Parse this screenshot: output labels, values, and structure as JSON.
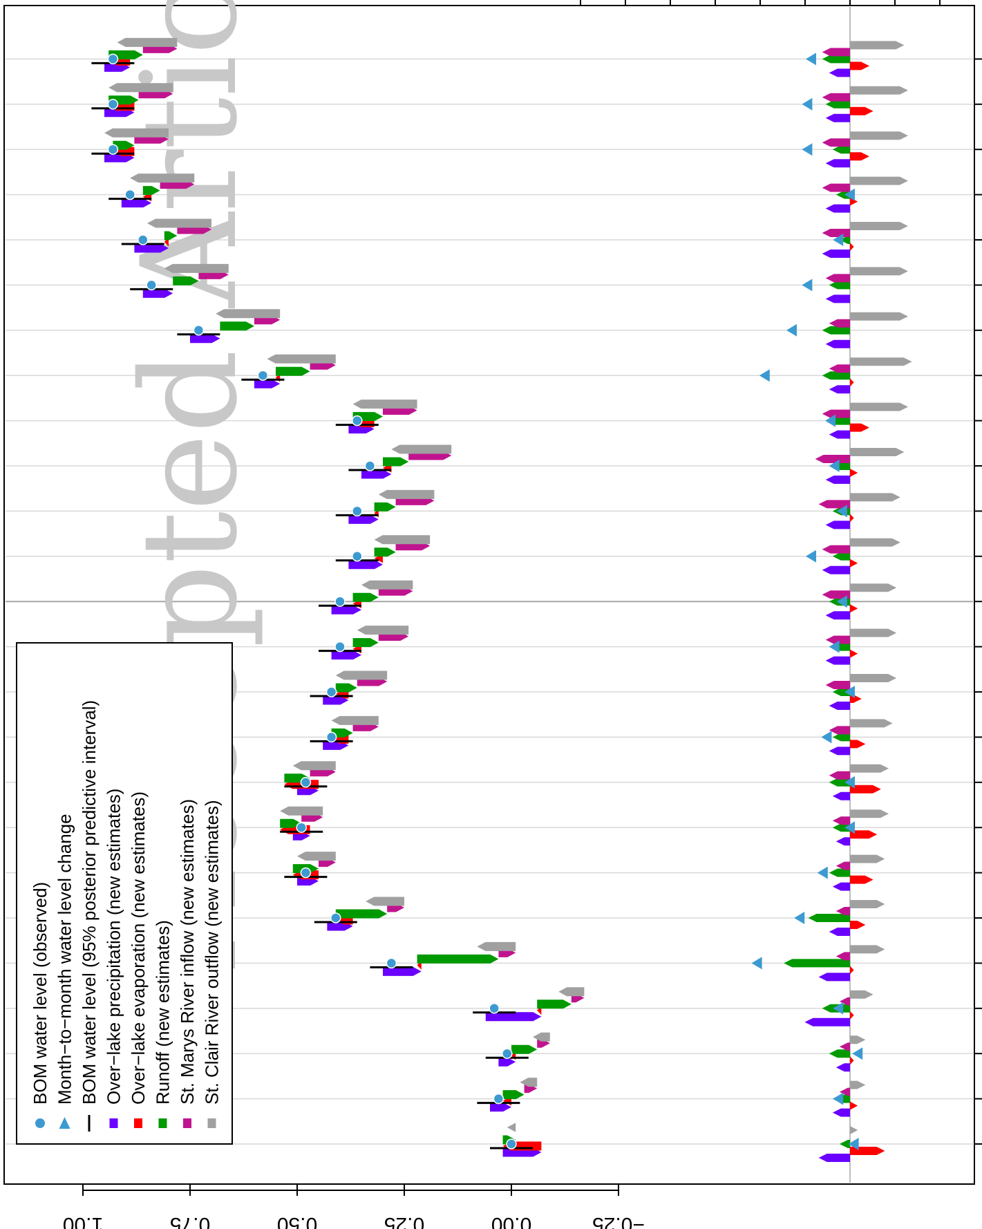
{
  "chart_data": {
    "type": "bar",
    "watermark": "Accepted Article",
    "value_axis": {
      "ticks": [
        -0.25,
        0.0,
        0.25,
        0.5,
        0.75,
        1.0
      ],
      "tick_labels": [
        "−0.25",
        "0.00",
        "0.25",
        "0.50",
        "0.75",
        "1.00"
      ]
    },
    "grid": true,
    "legend": {
      "placement": "bottom-left",
      "entries": [
        {
          "label": "BOM water level (observed)",
          "color": "#3d9ad1",
          "icon": "circle"
        },
        {
          "label": "Month−to−month water level change",
          "color": "#3d9ad1",
          "icon": "triangle"
        },
        {
          "label": "BOM water level (95% posterior predictive interval)",
          "color": "#000000",
          "icon": "line"
        },
        {
          "label": "Over−lake precipitation (new estimates)",
          "color": "#6a00ff",
          "icon": "square"
        },
        {
          "label": "Over−lake evaporation (new estimates)",
          "color": "#ff0000",
          "icon": "square"
        },
        {
          "label": "Runoff (new estimates)",
          "color": "#009900",
          "icon": "square"
        },
        {
          "label": "St. Marys River inflow (new estimates)",
          "color": "#c0148f",
          "icon": "square"
        },
        {
          "label": "St. Clair River outflow (new estimates)",
          "color": "#a0a0a0",
          "icon": "square"
        }
      ]
    },
    "months": 25,
    "series": [
      {
        "name": "BOM water level (observed)",
        "values": [
          0.0,
          0.03,
          0.01,
          0.04,
          0.28,
          0.41,
          0.48,
          0.49,
          0.48,
          0.42,
          0.42,
          0.4,
          0.4,
          0.36,
          0.36,
          0.33,
          0.36,
          0.58,
          0.73,
          0.84,
          0.86,
          0.89,
          0.93,
          0.93,
          0.93
        ]
      },
      {
        "name": "Month−to−month water level change",
        "values": [
          -0.01,
          0.03,
          -0.02,
          0.03,
          0.24,
          0.13,
          0.07,
          0.0,
          0.0,
          0.06,
          0.0,
          0.04,
          0.02,
          0.1,
          0.02,
          0.04,
          0.05,
          0.22,
          0.15,
          0.11,
          0.03,
          0.0,
          0.11,
          0.11,
          0.1
        ]
      },
      {
        "name": "Over−lake precipitation (new estimates)",
        "values": [
          0.09,
          0.05,
          0.04,
          0.13,
          0.09,
          0.06,
          0.05,
          0.04,
          0.05,
          0.06,
          0.06,
          0.07,
          0.07,
          0.08,
          0.07,
          0.07,
          0.06,
          0.06,
          0.07,
          0.07,
          0.08,
          0.07,
          0.07,
          0.07,
          0.06
        ]
      },
      {
        "name": "Over−lake evaporation (new estimates)",
        "values": [
          -0.09,
          -0.02,
          -0.01,
          -0.01,
          -0.01,
          -0.04,
          -0.06,
          -0.07,
          -0.08,
          -0.04,
          -0.03,
          -0.02,
          -0.02,
          -0.02,
          -0.01,
          -0.02,
          -0.05,
          -0.01,
          0.0,
          0.0,
          -0.01,
          -0.02,
          -0.05,
          -0.06,
          -0.05
        ]
      },
      {
        "name": "Runoff (new estimates)",
        "values": [
          0.03,
          0.05,
          0.06,
          0.08,
          0.19,
          0.12,
          0.06,
          0.05,
          0.06,
          0.05,
          0.05,
          0.06,
          0.06,
          0.05,
          0.05,
          0.06,
          0.07,
          0.08,
          0.08,
          0.06,
          0.03,
          0.04,
          0.05,
          0.07,
          0.08
        ]
      },
      {
        "name": "St. Marys River inflow (new estimates)",
        "values": [
          0.0,
          0.03,
          0.03,
          0.03,
          0.04,
          0.04,
          0.04,
          0.05,
          0.06,
          0.06,
          0.07,
          0.07,
          0.08,
          0.08,
          0.09,
          0.1,
          0.08,
          0.06,
          0.06,
          0.07,
          0.08,
          0.08,
          0.08,
          0.08,
          0.08
        ]
      },
      {
        "name": "St. Clair River outflow (new estimates)",
        "values": [
          -0.02,
          -0.04,
          -0.04,
          -0.06,
          -0.09,
          -0.09,
          -0.09,
          -0.1,
          -0.1,
          -0.11,
          -0.12,
          -0.12,
          -0.12,
          -0.13,
          -0.13,
          -0.14,
          -0.15,
          -0.16,
          -0.15,
          -0.15,
          -0.15,
          -0.15,
          -0.15,
          -0.15,
          -0.14
        ]
      }
    ]
  }
}
